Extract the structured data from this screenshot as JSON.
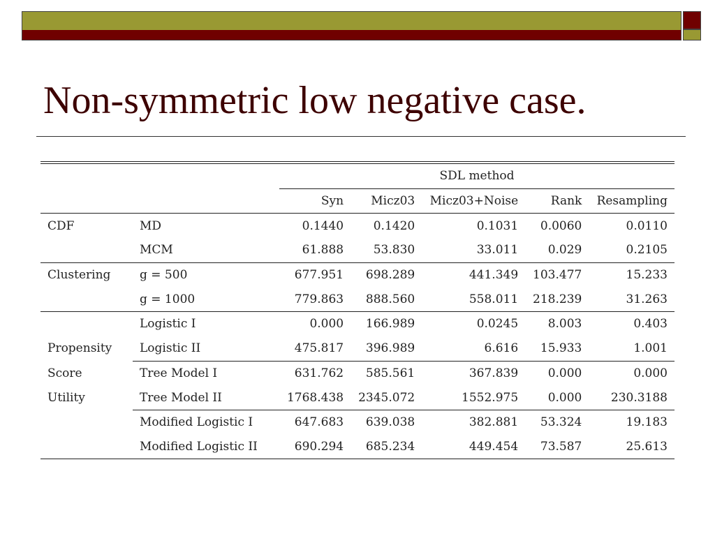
{
  "slide": {
    "title": "Non-symmetric low negative case."
  },
  "table": {
    "group_header": "SDL method",
    "columns": [
      "Syn",
      "Micz03",
      "Micz03+Noise",
      "Rank",
      "Resampling"
    ],
    "rows": {
      "cdf_md": {
        "group": "CDF",
        "measure": "MD",
        "values": [
          "0.1440",
          "0.1420",
          "0.1031",
          "0.0060",
          "0.0110"
        ]
      },
      "cdf_mcm": {
        "group": "",
        "measure": "MCM",
        "values": [
          "61.888",
          "53.830",
          "33.011",
          "0.029",
          "0.2105"
        ]
      },
      "clus_500": {
        "group": "Clustering",
        "measure": "g = 500",
        "values": [
          "677.951",
          "698.289",
          "441.349",
          "103.477",
          "15.233"
        ]
      },
      "clus_1000": {
        "group": "",
        "measure": "g = 1000",
        "values": [
          "779.863",
          "888.560",
          "558.011",
          "218.239",
          "31.263"
        ]
      },
      "log_1": {
        "group": "",
        "measure": "Logistic I",
        "values": [
          "0.000",
          "166.989",
          "0.0245",
          "8.003",
          "0.403"
        ]
      },
      "log_2": {
        "group": "Propensity",
        "measure": "Logistic II",
        "values": [
          "475.817",
          "396.989",
          "6.616",
          "15.933",
          "1.001"
        ]
      },
      "tree_1": {
        "group": "Score",
        "measure": "Tree Model I",
        "values": [
          "631.762",
          "585.561",
          "367.839",
          "0.000",
          "0.000"
        ]
      },
      "tree_2": {
        "group": "Utility",
        "measure": "Tree Model II",
        "values": [
          "1768.438",
          "2345.072",
          "1552.975",
          "0.000",
          "230.3188"
        ]
      },
      "mlog_1": {
        "group": "",
        "measure": "Modified Logistic I",
        "values": [
          "647.683",
          "639.038",
          "382.881",
          "53.324",
          "19.183"
        ]
      },
      "mlog_2": {
        "group": "",
        "measure": "Modified Logistic II",
        "values": [
          "690.294",
          "685.234",
          "449.454",
          "73.587",
          "25.613"
        ]
      }
    }
  },
  "colors": {
    "olive": "#999933",
    "maroon": "#700000",
    "title": "#3d0000"
  }
}
